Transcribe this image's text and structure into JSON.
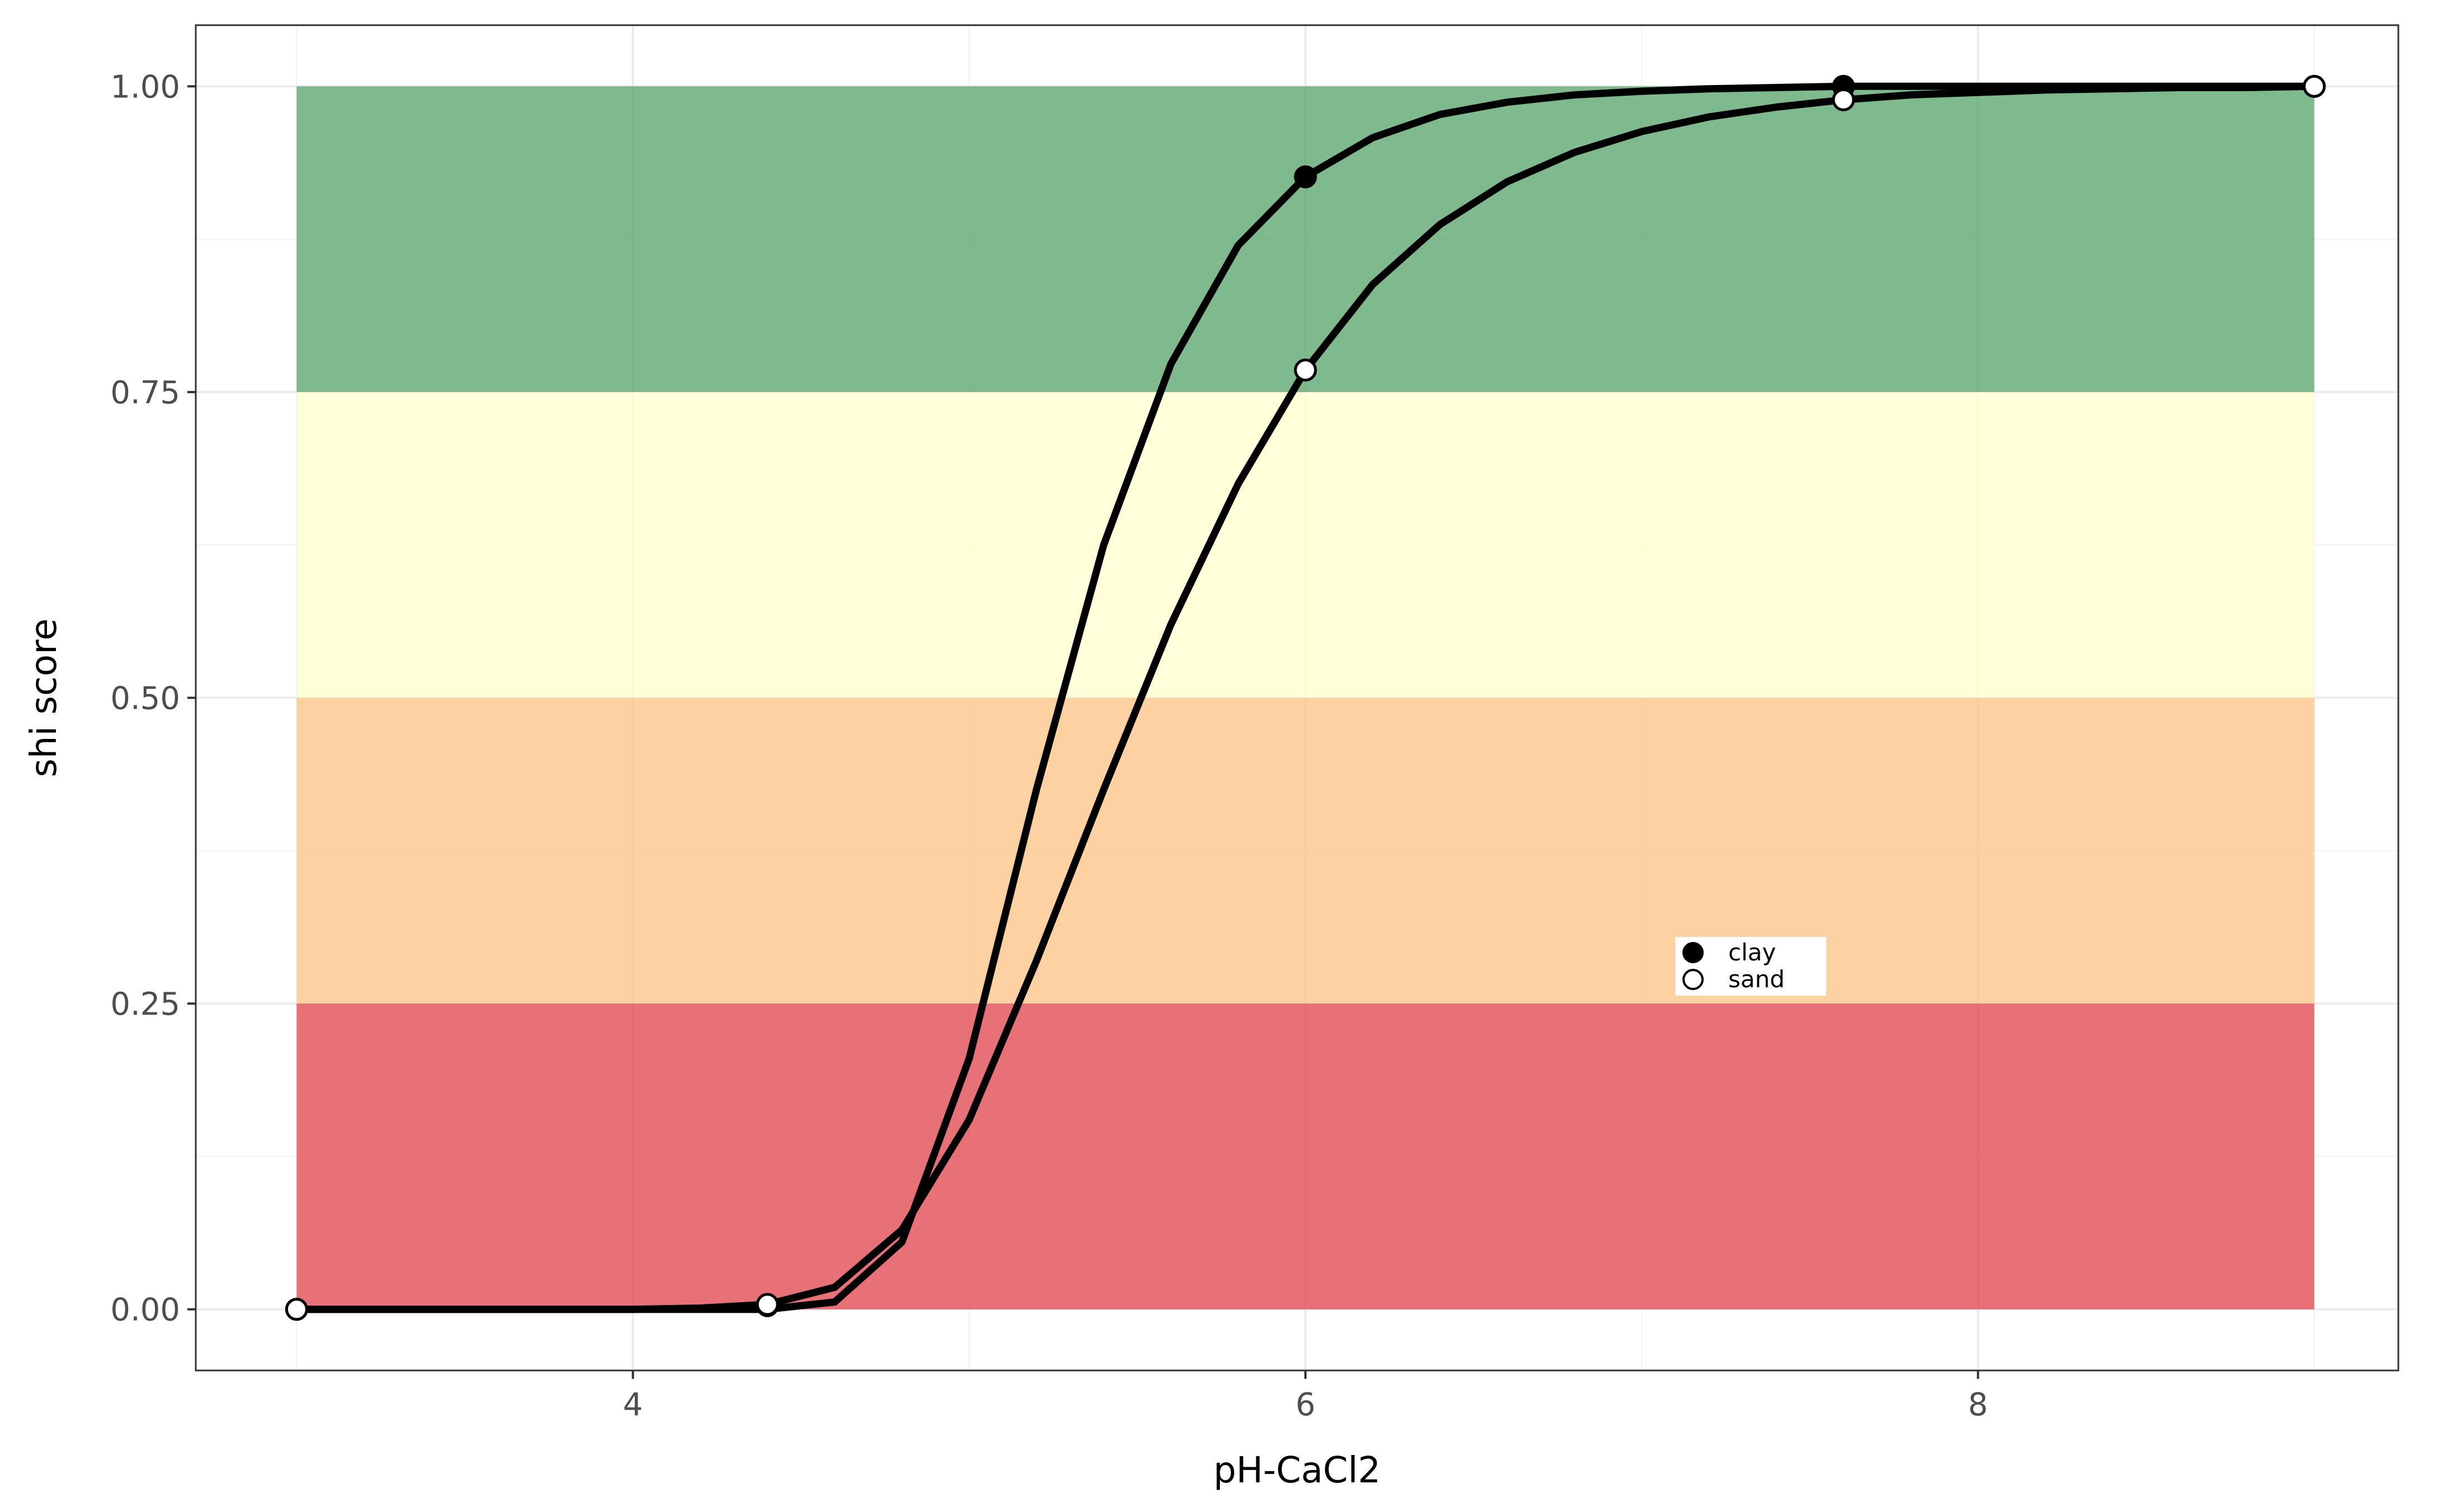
{
  "chart_data": {
    "type": "line",
    "title": "",
    "xlabel": "pH-CaCl2",
    "ylabel": "shi score",
    "xlim": [
      2.7,
      9.25
    ],
    "ylim": [
      -0.05,
      1.05
    ],
    "x_ticks": [
      4,
      6,
      8
    ],
    "x_tick_labels": [
      "4",
      "6",
      "8"
    ],
    "y_ticks": [
      0,
      0.25,
      0.5,
      0.75,
      1
    ],
    "y_tick_labels": [
      "0.00",
      "0.25",
      "0.50",
      "0.75",
      "1.00"
    ],
    "grid": true,
    "legend_position": "inside, center-right",
    "bands": [
      {
        "ymin": 0.75,
        "ymax": 1.0,
        "xmin": 3.0,
        "xmax": 9.0,
        "color": "#4e9e62"
      },
      {
        "ymin": 0.5,
        "ymax": 0.75,
        "xmin": 3.0,
        "xmax": 9.0,
        "color": "#ffffcc"
      },
      {
        "ymin": 0.25,
        "ymax": 0.5,
        "xmin": 3.0,
        "xmax": 9.0,
        "color": "#fdbf80"
      },
      {
        "ymin": 0.0,
        "ymax": 0.25,
        "xmin": 3.0,
        "xmax": 9.0,
        "color": "#de3a43"
      }
    ],
    "series": [
      {
        "name": "clay",
        "marker_fill": "#000000",
        "line_x": [
          3.0,
          3.2,
          3.4,
          3.6,
          3.8,
          4.0,
          4.2,
          4.4,
          4.6,
          4.8,
          5.0,
          5.2,
          5.4,
          5.6,
          5.8,
          6.0,
          6.2,
          6.4,
          6.6,
          6.8,
          7.0,
          7.2,
          7.4,
          7.6,
          7.8,
          8.0,
          8.2,
          8.4,
          8.6,
          8.8,
          9.0
        ],
        "line_y": [
          0.0,
          0.0,
          0.0,
          0.0,
          0.0,
          0.0,
          0.0,
          0.0,
          0.006,
          0.055,
          0.205,
          0.425,
          0.625,
          0.773,
          0.87,
          0.926,
          0.958,
          0.977,
          0.987,
          0.993,
          0.996,
          0.998,
          0.999,
          1.0,
          1.0,
          1.0,
          1.0,
          1.0,
          1.0,
          1.0,
          1.0
        ],
        "points_x": [
          3.0,
          4.4,
          6.0,
          7.6,
          9.0
        ],
        "points_y": [
          0.0,
          0.003,
          0.926,
          1.0,
          1.0
        ]
      },
      {
        "name": "sand",
        "marker_fill": "#ffffff",
        "line_x": [
          3.0,
          3.2,
          3.4,
          3.6,
          3.8,
          4.0,
          4.2,
          4.4,
          4.6,
          4.8,
          5.0,
          5.2,
          5.4,
          5.6,
          5.8,
          6.0,
          6.2,
          6.4,
          6.6,
          6.8,
          7.0,
          7.2,
          7.4,
          7.6,
          7.8,
          8.0,
          8.2,
          8.4,
          8.6,
          8.8,
          9.0
        ],
        "line_y": [
          0.0,
          0.0,
          0.0,
          0.0,
          0.0,
          0.0,
          0.001,
          0.004,
          0.018,
          0.065,
          0.155,
          0.285,
          0.425,
          0.56,
          0.675,
          0.768,
          0.838,
          0.887,
          0.922,
          0.946,
          0.963,
          0.975,
          0.983,
          0.989,
          0.993,
          0.995,
          0.997,
          0.998,
          0.999,
          0.999,
          1.0
        ],
        "points_x": [
          3.0,
          4.4,
          6.0,
          7.6,
          9.0
        ],
        "points_y": [
          0.0,
          0.004,
          0.768,
          0.989,
          1.0
        ]
      }
    ]
  }
}
